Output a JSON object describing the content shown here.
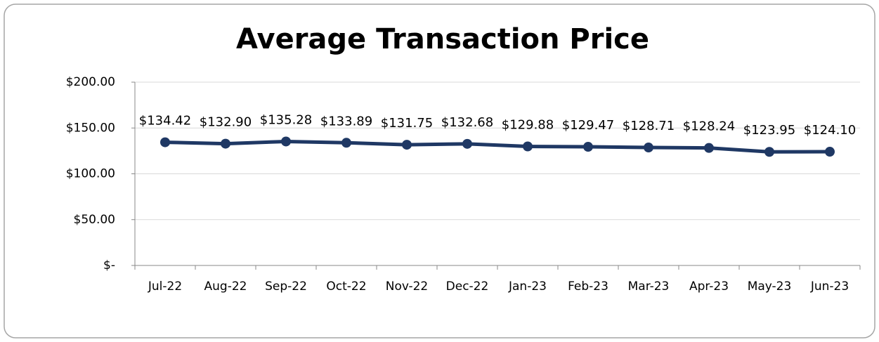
{
  "chart_data": {
    "type": "line",
    "title": "Average Transaction Price",
    "categories": [
      "Jul-22",
      "Aug-22",
      "Sep-22",
      "Oct-22",
      "Nov-22",
      "Dec-22",
      "Jan-23",
      "Feb-23",
      "Mar-23",
      "Apr-23",
      "May-23",
      "Jun-23"
    ],
    "series": [
      {
        "name": "Average Transaction Price",
        "color": "#1f3864",
        "values": [
          134.42,
          132.9,
          135.28,
          133.89,
          131.75,
          132.68,
          129.88,
          129.47,
          128.71,
          128.24,
          123.95,
          124.1
        ],
        "value_labels": [
          "$134.42",
          "$132.90",
          "$135.28",
          "$133.89",
          "$131.75",
          "$132.68",
          "$129.88",
          "$129.47",
          "$128.71",
          "$128.24",
          "$123.95",
          "$124.10"
        ]
      }
    ],
    "ylim": [
      0,
      200
    ],
    "yticks": [
      {
        "value": 0,
        "label": "$-"
      },
      {
        "value": 50,
        "label": "$50.00"
      },
      {
        "value": 100,
        "label": "$100.00"
      },
      {
        "value": 150,
        "label": "$150.00"
      },
      {
        "value": 200,
        "label": "$200.00"
      }
    ],
    "grid": true
  }
}
